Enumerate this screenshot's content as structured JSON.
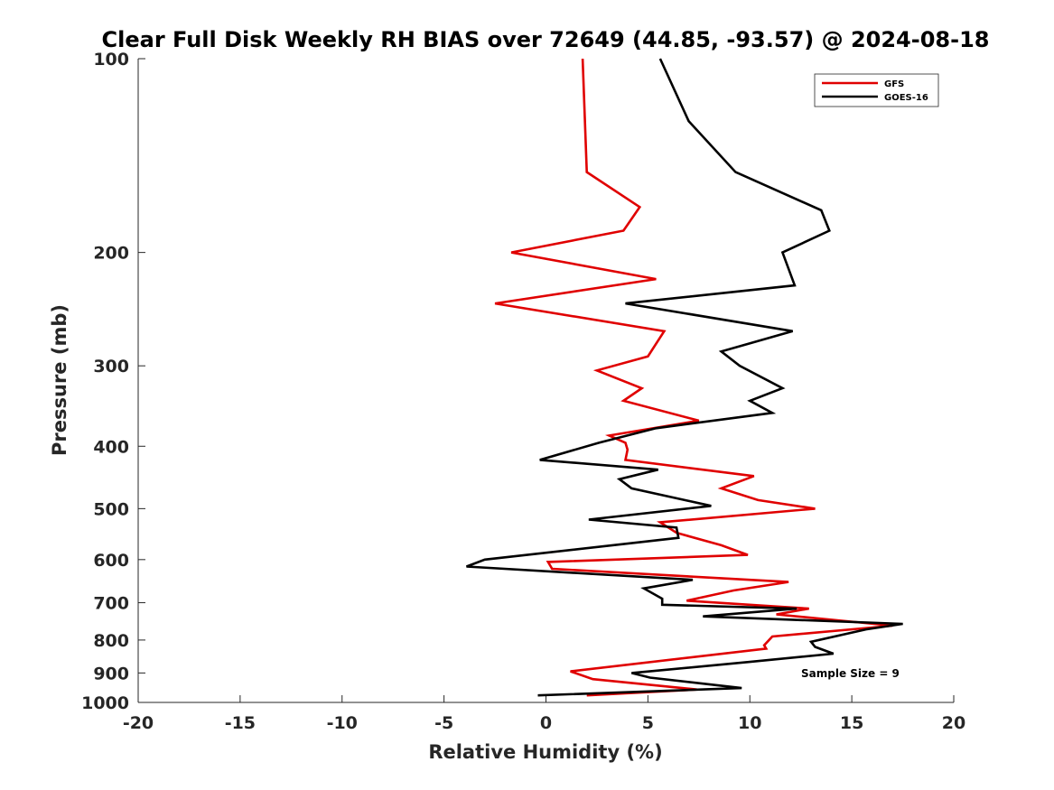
{
  "chart_data": {
    "type": "line",
    "title": "Clear Full Disk Weekly RH BIAS over 72649 (44.85, -93.57) @ 2024-08-18",
    "xlabel": "Relative Humidity (%)",
    "ylabel": "Pressure (mb)",
    "xlim": [
      -20,
      20
    ],
    "ylim": [
      100,
      1000
    ],
    "y_scale": "log",
    "y_reversed": true,
    "xticks": [
      -20,
      -15,
      -10,
      -5,
      0,
      5,
      10,
      15,
      20
    ],
    "yticks": [
      100,
      200,
      300,
      400,
      500,
      600,
      700,
      800,
      900,
      1000
    ],
    "grid": false,
    "legend_position": "top-right",
    "annotation": "Sample Size = 9",
    "series": [
      {
        "name": "GFS",
        "color": "#e00000",
        "points": [
          [
            1.8,
            100
          ],
          [
            2.0,
            150
          ],
          [
            4.6,
            170
          ],
          [
            3.8,
            185
          ],
          [
            -1.7,
            200
          ],
          [
            5.4,
            220
          ],
          [
            -2.5,
            240
          ],
          [
            5.8,
            265
          ],
          [
            5.0,
            290
          ],
          [
            2.5,
            305
          ],
          [
            4.7,
            325
          ],
          [
            3.8,
            340
          ],
          [
            7.5,
            365
          ],
          [
            3.1,
            385
          ],
          [
            3.9,
            395
          ],
          [
            4.0,
            405
          ],
          [
            3.9,
            420
          ],
          [
            10.2,
            445
          ],
          [
            8.6,
            465
          ],
          [
            10.4,
            485
          ],
          [
            13.2,
            500
          ],
          [
            5.6,
            525
          ],
          [
            6.4,
            545
          ],
          [
            8.6,
            570
          ],
          [
            9.9,
            590
          ],
          [
            0.1,
            605
          ],
          [
            0.3,
            620
          ],
          [
            11.9,
            650
          ],
          [
            9.2,
            670
          ],
          [
            6.9,
            695
          ],
          [
            12.9,
            715
          ],
          [
            11.3,
            730
          ],
          [
            17.0,
            760
          ],
          [
            11.1,
            790
          ],
          [
            10.7,
            815
          ],
          [
            10.8,
            825
          ],
          [
            1.2,
            895
          ],
          [
            2.3,
            920
          ],
          [
            7.4,
            955
          ],
          [
            2.0,
            975
          ]
        ]
      },
      {
        "name": "GOES-16",
        "color": "#000000",
        "points": [
          [
            5.6,
            100
          ],
          [
            7.0,
            125
          ],
          [
            9.3,
            150
          ],
          [
            13.5,
            172
          ],
          [
            13.9,
            185
          ],
          [
            11.6,
            200
          ],
          [
            12.2,
            225
          ],
          [
            3.9,
            240
          ],
          [
            12.1,
            265
          ],
          [
            8.6,
            285
          ],
          [
            9.5,
            300
          ],
          [
            11.6,
            325
          ],
          [
            10.0,
            340
          ],
          [
            11.1,
            355
          ],
          [
            5.4,
            375
          ],
          [
            2.6,
            395
          ],
          [
            -0.3,
            420
          ],
          [
            5.5,
            435
          ],
          [
            3.6,
            450
          ],
          [
            4.2,
            465
          ],
          [
            8.1,
            495
          ],
          [
            2.1,
            520
          ],
          [
            6.4,
            535
          ],
          [
            6.5,
            555
          ],
          [
            -3.0,
            600
          ],
          [
            -3.9,
            615
          ],
          [
            7.2,
            645
          ],
          [
            4.8,
            665
          ],
          [
            5.7,
            690
          ],
          [
            5.7,
            705
          ],
          [
            12.3,
            715
          ],
          [
            7.7,
            735
          ],
          [
            17.5,
            755
          ],
          [
            15.7,
            770
          ],
          [
            13.0,
            805
          ],
          [
            13.2,
            820
          ],
          [
            14.1,
            840
          ],
          [
            10.0,
            865
          ],
          [
            4.2,
            900
          ],
          [
            5.1,
            915
          ],
          [
            9.6,
            950
          ],
          [
            -0.4,
            975
          ]
        ]
      }
    ]
  }
}
